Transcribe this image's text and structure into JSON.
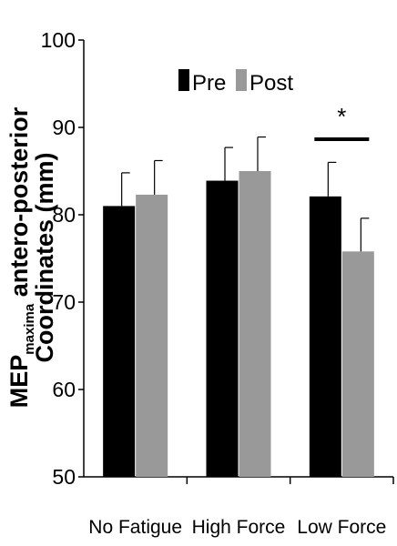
{
  "chart_data": {
    "type": "bar",
    "title": "",
    "ylabel_main": "MEP",
    "ylabel_sub": "maxima",
    "ylabel_rest": " antero-posterior",
    "ylabel_line2": "Coordinates (mm)",
    "xlabel": "",
    "ylim": [
      50,
      100
    ],
    "yticks": [
      "50",
      "60",
      "70",
      "80",
      "90",
      "100"
    ],
    "grid": false,
    "legend_position": "top-center",
    "categories": [
      "No Fatigue",
      "High Force",
      "Low Force"
    ],
    "series": [
      {
        "name": "Pre",
        "color": "#000000",
        "values": [
          81.0,
          83.9,
          82.1
        ],
        "errors": [
          3.8,
          3.8,
          3.9
        ]
      },
      {
        "name": "Post",
        "color": "#999999",
        "values": [
          82.3,
          85.0,
          75.8
        ],
        "errors": [
          3.9,
          3.9,
          3.8
        ]
      }
    ],
    "annotations": [
      {
        "text": "*",
        "category": "Low Force"
      }
    ]
  }
}
